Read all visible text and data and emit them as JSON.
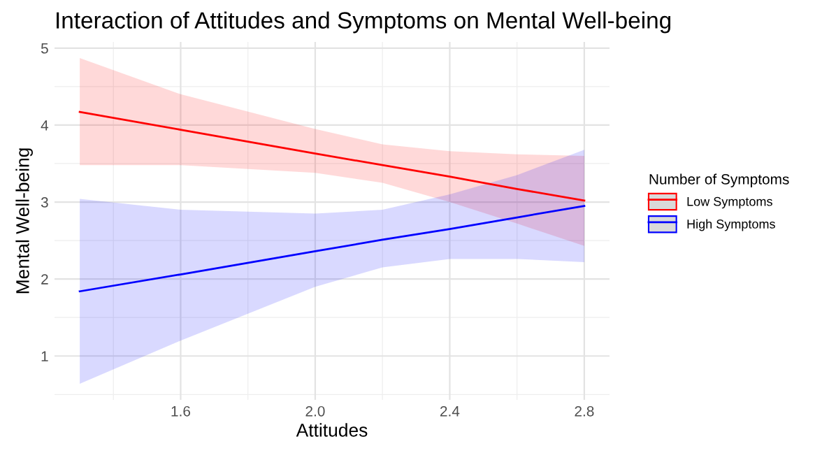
{
  "chart_data": {
    "type": "line",
    "title": "Interaction of Attitudes and Symptoms on Mental Well-being",
    "xlabel": "Attitudes",
    "ylabel": "Mental Well-being",
    "legend_title": "Number of Symptoms",
    "x": [
      1.3,
      1.6,
      2.0,
      2.2,
      2.4,
      2.6,
      2.8
    ],
    "series": [
      {
        "name": "Low Symptoms",
        "color": "#ff0000",
        "values": [
          4.17,
          3.94,
          3.63,
          3.48,
          3.33,
          3.17,
          3.02
        ],
        "lower": [
          3.48,
          3.48,
          3.38,
          3.25,
          3.0,
          2.72,
          2.43
        ],
        "upper": [
          4.87,
          4.4,
          3.95,
          3.75,
          3.66,
          3.62,
          3.6
        ]
      },
      {
        "name": "High Symptoms",
        "color": "#0000ff",
        "values": [
          1.84,
          2.06,
          2.36,
          2.51,
          2.65,
          2.8,
          2.95
        ],
        "lower": [
          0.64,
          1.2,
          1.9,
          2.15,
          2.26,
          2.26,
          2.22
        ],
        "upper": [
          3.04,
          2.9,
          2.85,
          2.9,
          3.1,
          3.35,
          3.68
        ]
      }
    ],
    "xlim": [
      1.225,
      2.875
    ],
    "ylim": [
      0.43,
      5.08
    ],
    "xticks": [
      {
        "value": 1.6,
        "label": "1.6"
      },
      {
        "value": 2.0,
        "label": "2.0"
      },
      {
        "value": 2.4,
        "label": "2.4"
      },
      {
        "value": 2.8,
        "label": "2.8"
      }
    ],
    "yticks": [
      1,
      2,
      3,
      4,
      5
    ],
    "grid": true,
    "legend": "right",
    "marker": "none",
    "line_style": "solid"
  }
}
